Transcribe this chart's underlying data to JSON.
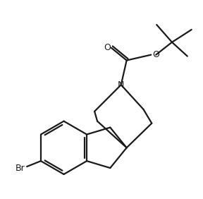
{
  "background_color": "#ffffff",
  "line_color": "#1a1a1a",
  "line_width": 1.6,
  "figsize": [
    2.88,
    2.82
  ],
  "dpi": 100,
  "atoms": {
    "N": "N",
    "O_carbonyl": "O",
    "O_ester": "O",
    "Br": "Br"
  }
}
